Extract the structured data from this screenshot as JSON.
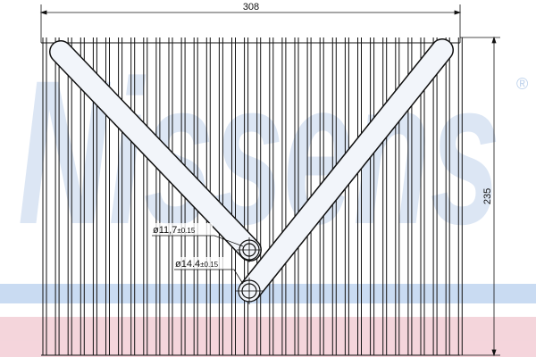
{
  "watermark": {
    "text": "Nissens",
    "registered": "®",
    "color": "#a9c4e6",
    "band_color": "#f1c7d0",
    "stripe_color": "#b7d0ee"
  },
  "dimensions": {
    "width": "308",
    "height": "235"
  },
  "callouts": [
    {
      "diameter": "ø11,7",
      "tolerance": "±0.15"
    },
    {
      "diameter": "ø14.4",
      "tolerance": "±0.15"
    }
  ],
  "colors": {
    "line": "#111111",
    "pipe_fill": "#f2f5fa"
  }
}
